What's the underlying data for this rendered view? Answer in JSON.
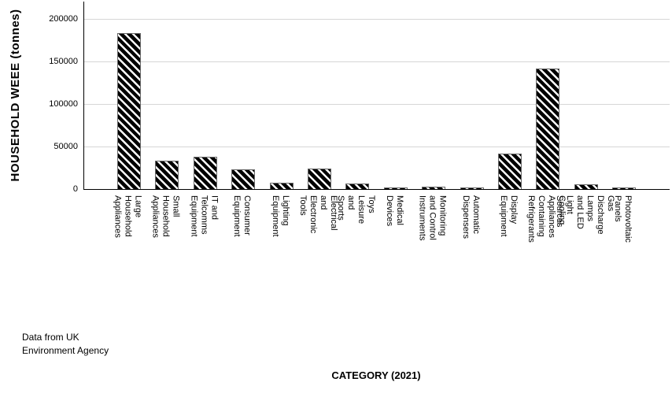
{
  "y_axis": {
    "title": "HOUSEHOLD WEEE (tonnes)",
    "tick_labels": [
      "0",
      "50000",
      "100000",
      "150000",
      "200000"
    ]
  },
  "x_axis": {
    "title": "CATEGORY (2021)"
  },
  "annotation": {
    "text": "Data from UK\nEnvironment Agency"
  },
  "style": {
    "bar_fill": "#000000",
    "bar_hatch": "diagonal-stripes",
    "bar_outline": "#666666",
    "gridline_color": "#d6d6d6",
    "axis_color": "#000000"
  },
  "chart_data": {
    "type": "bar",
    "title": "",
    "xlabel": "CATEGORY (2021)",
    "ylabel": "HOUSEHOLD WEEE (tonnes)",
    "categories": [
      "Large Household Appliances",
      "Small Household Appliances",
      "IT and Telcomms Equipment",
      "Consumer Equipment",
      "Lighting Equipment",
      "Electrical and Electronic Tools",
      "Toys Leisure and Sports",
      "Medical Devices",
      "Monitoring and Control Instruments",
      "Automatic Dispensers",
      "Display Equipment",
      "Cooling Appliances Containing\nRefrigerants",
      "Gas Discharge Lamps and LED Light\nSources",
      "Photovoltaic Panels"
    ],
    "values": [
      182000,
      32000,
      37000,
      22000,
      6500,
      23500,
      6000,
      500,
      1500,
      500,
      40500,
      141000,
      5000,
      500
    ],
    "yticks": [
      0,
      50000,
      100000,
      150000,
      200000
    ],
    "ylim": [
      0,
      220000
    ],
    "grid": "horizontal",
    "legend": "none",
    "annotation": "Data from UK\nEnvironment Agency"
  }
}
